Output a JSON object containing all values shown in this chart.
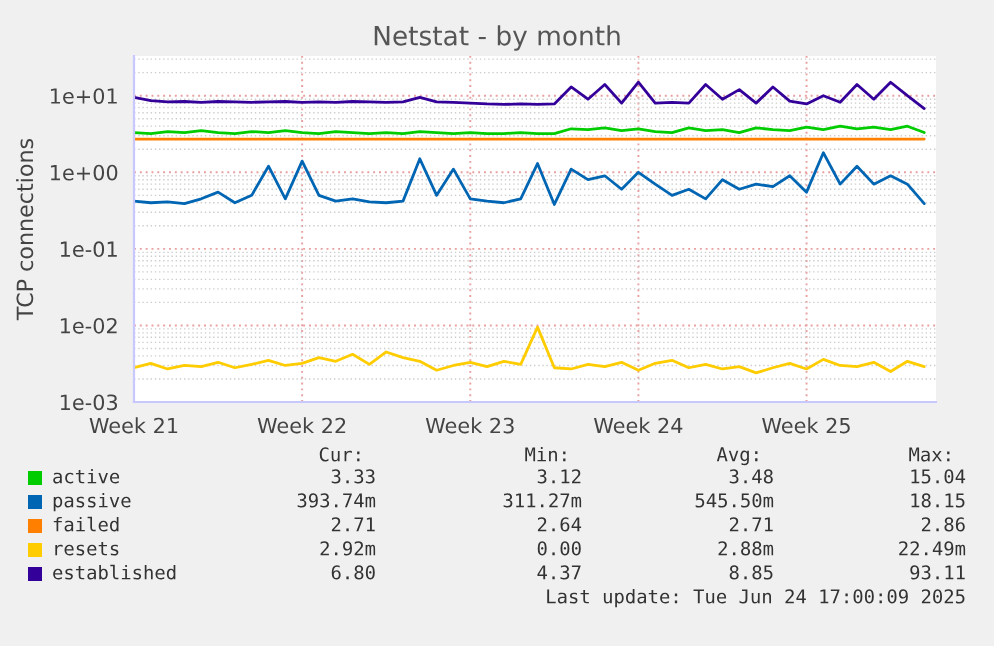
{
  "chart_data": {
    "type": "line",
    "title": "Netstat - by month",
    "ylabel": "TCP connections",
    "log": true,
    "grid": true,
    "legend": "bottom",
    "categories": [
      "Week 21",
      null,
      null,
      null,
      null,
      null,
      null,
      null,
      null,
      null,
      "Week 22",
      null,
      null,
      null,
      null,
      null,
      null,
      null,
      null,
      null,
      "Week 23",
      null,
      null,
      null,
      null,
      null,
      null,
      null,
      null,
      null,
      "Week 24",
      null,
      null,
      null,
      null,
      null,
      null,
      null,
      null,
      null,
      "Week 25",
      null,
      null,
      null,
      null,
      null,
      null,
      null
    ],
    "ylim": [
      0.001,
      33
    ],
    "yticks": [
      {
        "value": 0.001,
        "label": "1e-03"
      },
      {
        "value": 0.01,
        "label": "1e-02"
      },
      {
        "value": 0.1,
        "label": "1e-01"
      },
      {
        "value": 1,
        "label": "1e+00"
      },
      {
        "value": 10,
        "label": "1e+01"
      }
    ],
    "series": [
      {
        "name": "active",
        "color": "#00cc00",
        "values": [
          3.3,
          3.2,
          3.4,
          3.3,
          3.5,
          3.3,
          3.2,
          3.4,
          3.3,
          3.5,
          3.3,
          3.2,
          3.4,
          3.3,
          3.2,
          3.3,
          3.2,
          3.4,
          3.3,
          3.2,
          3.3,
          3.2,
          3.2,
          3.3,
          3.2,
          3.2,
          3.7,
          3.6,
          3.8,
          3.5,
          3.7,
          3.4,
          3.3,
          3.8,
          3.5,
          3.6,
          3.3,
          3.8,
          3.6,
          3.5,
          3.9,
          3.6,
          4.0,
          3.7,
          3.9,
          3.6,
          4.0,
          3.3
        ]
      },
      {
        "name": "passive",
        "color": "#0066b3",
        "values": [
          0.42,
          0.4,
          0.41,
          0.39,
          0.45,
          0.55,
          0.4,
          0.5,
          1.2,
          0.45,
          1.4,
          0.5,
          0.42,
          0.45,
          0.41,
          0.4,
          0.42,
          1.5,
          0.5,
          1.1,
          0.45,
          0.42,
          0.4,
          0.45,
          1.3,
          0.38,
          1.1,
          0.8,
          0.9,
          0.6,
          1.0,
          0.7,
          0.5,
          0.6,
          0.45,
          0.8,
          0.6,
          0.7,
          0.65,
          0.9,
          0.55,
          1.8,
          0.7,
          1.2,
          0.7,
          0.9,
          0.7,
          0.39
        ]
      },
      {
        "name": "failed",
        "color": "#ff8000",
        "values": [
          2.71,
          2.71,
          2.71,
          2.71,
          2.71,
          2.71,
          2.71,
          2.71,
          2.71,
          2.71,
          2.71,
          2.71,
          2.71,
          2.71,
          2.71,
          2.71,
          2.71,
          2.71,
          2.71,
          2.71,
          2.71,
          2.71,
          2.71,
          2.71,
          2.71,
          2.71,
          2.71,
          2.71,
          2.71,
          2.71,
          2.71,
          2.71,
          2.71,
          2.71,
          2.71,
          2.71,
          2.71,
          2.71,
          2.71,
          2.71,
          2.71,
          2.71,
          2.71,
          2.71,
          2.71,
          2.71,
          2.71,
          2.71
        ]
      },
      {
        "name": "resets",
        "color": "#ffcc00",
        "values": [
          0.0028,
          0.0032,
          0.0027,
          0.003,
          0.0029,
          0.0033,
          0.0028,
          0.0031,
          0.0035,
          0.003,
          0.0032,
          0.0038,
          0.0034,
          0.0042,
          0.0031,
          0.0045,
          0.0038,
          0.0034,
          0.0026,
          0.003,
          0.0033,
          0.0029,
          0.0034,
          0.0031,
          0.0095,
          0.0028,
          0.0027,
          0.0031,
          0.0029,
          0.0033,
          0.0026,
          0.0032,
          0.0035,
          0.0028,
          0.0031,
          0.0027,
          0.0029,
          0.0024,
          0.0028,
          0.0032,
          0.0027,
          0.0036,
          0.003,
          0.0029,
          0.0033,
          0.0025,
          0.0034,
          0.0029
        ]
      },
      {
        "name": "established",
        "color": "#330099",
        "values": [
          9.5,
          8.6,
          8.3,
          8.4,
          8.2,
          8.4,
          8.3,
          8.2,
          8.3,
          8.4,
          8.2,
          8.3,
          8.2,
          8.4,
          8.3,
          8.2,
          8.3,
          9.5,
          8.3,
          8.2,
          8.0,
          7.8,
          7.7,
          7.8,
          7.7,
          7.8,
          13,
          9,
          14,
          8,
          15,
          8,
          8.2,
          8,
          14,
          9,
          12,
          8,
          13,
          8.5,
          7.8,
          10,
          8.2,
          14,
          9,
          15,
          10,
          6.8
        ]
      }
    ],
    "annotations": [
      "Cur:",
      "Min:",
      "Avg:",
      "Max:",
      "3.33",
      "3.12",
      "3.48",
      "15.04",
      "393.74m",
      "311.27m",
      "545.50m",
      "18.15",
      "2.71",
      "2.64",
      "2.71",
      "2.86",
      "2.92m",
      "0.00",
      "2.88m",
      "22.49m",
      "6.80",
      "4.37",
      "8.85",
      "93.11",
      "Last update: Tue Jun 24 17:00:09 2025"
    ]
  }
}
